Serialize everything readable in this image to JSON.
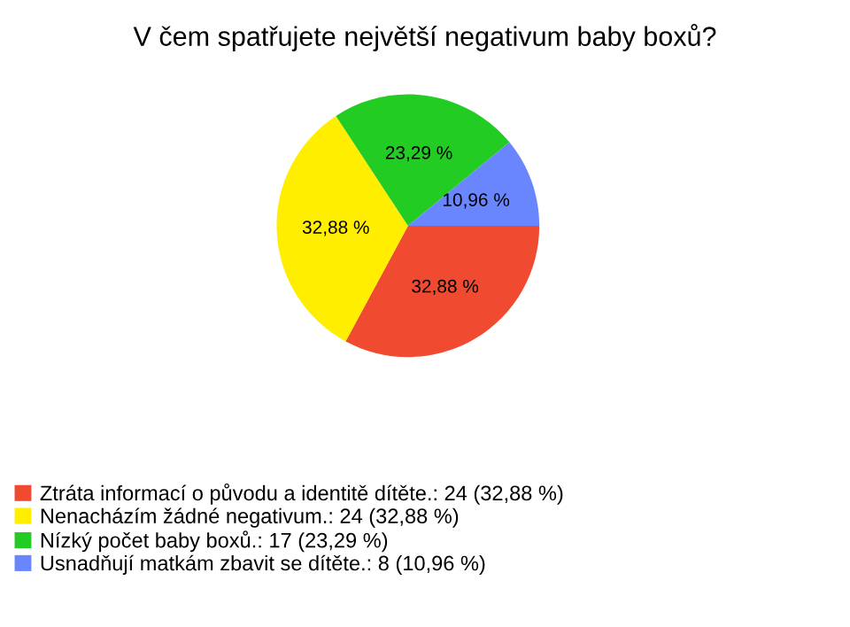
{
  "chart_data": {
    "type": "pie",
    "title": "V čem spatřujete největší negativum baby boxů?",
    "categories": [
      "Ztráta informací o původu a identitě dítěte.: 24 (32,88 %)",
      "Nenacházím žádné negativum.: 24 (32,88 %)",
      "Nízký počet baby boxů.: 17 (23,29 %)",
      "Usnadňují matkám zbavit se dítěte.: 8 (10,96 %)"
    ],
    "values": [
      32.88,
      32.88,
      23.29,
      10.96
    ],
    "value_labels": [
      "32,88 %",
      "32,88 %",
      "23,29 %",
      "10,96 %"
    ],
    "colors": [
      "#f04a30",
      "#ffee00",
      "#22cc22",
      "#6a86ff"
    ],
    "legend": "bottom left"
  }
}
